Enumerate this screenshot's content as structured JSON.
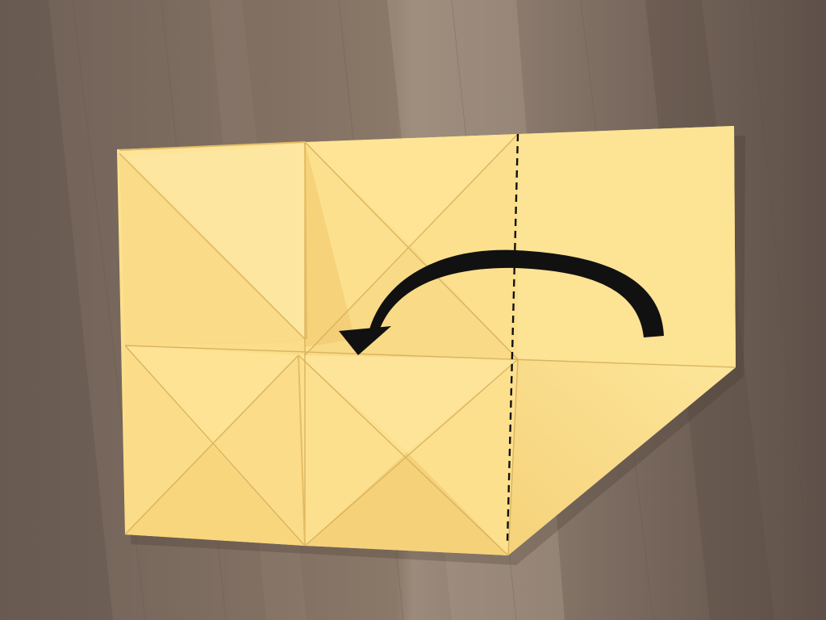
{
  "scene": {
    "subject": "origami-fold-step",
    "fold_direction": "right-to-left",
    "colors": {
      "table_base": "#7e6e62",
      "table_light": "#a39282",
      "table_dark": "#5d4f45",
      "paper": "#fde08f",
      "paper_shadow": "#efcb74",
      "paper_highlight": "#fff0b4",
      "crease": "#d9b35e",
      "arrow": "#111111",
      "fold_line": "#111111"
    }
  }
}
